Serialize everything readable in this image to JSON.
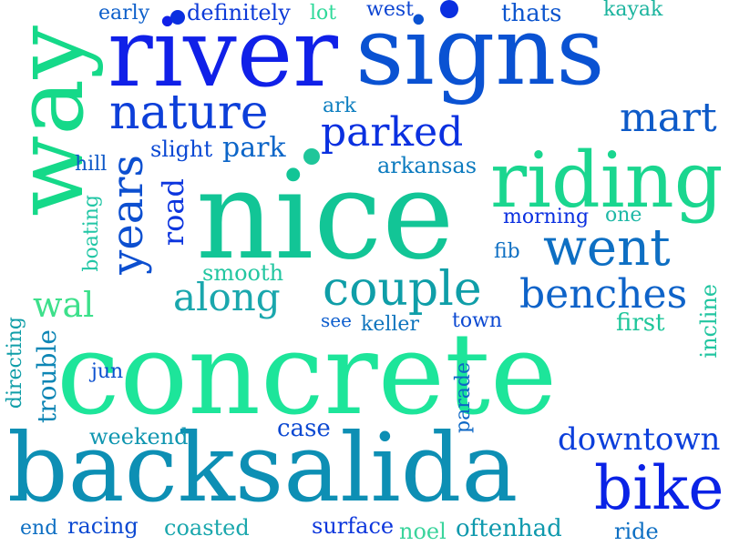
{
  "words": [
    {
      "text": "concrete",
      "color": "#1de59a",
      "vertical": false
    },
    {
      "text": "backsalida",
      "color": "#0d8fb4",
      "vertical": false
    },
    {
      "text": "nice",
      "color": "#12c596",
      "vertical": false
    },
    {
      "text": "river",
      "color": "#1020e8",
      "vertical": false
    },
    {
      "text": "signs",
      "color": "#0a52d2",
      "vertical": false
    },
    {
      "text": "way",
      "color": "#15d989",
      "vertical": true
    },
    {
      "text": "riding",
      "color": "#1ad68f",
      "vertical": false
    },
    {
      "text": "bike",
      "color": "#0a22e6",
      "vertical": false
    },
    {
      "text": "nature",
      "color": "#0d3fd9",
      "vertical": false
    },
    {
      "text": "went",
      "color": "#0e6fc3",
      "vertical": false
    },
    {
      "text": "couple",
      "color": "#0f9ea8",
      "vertical": false
    },
    {
      "text": "benches",
      "color": "#0e63c9",
      "vertical": false
    },
    {
      "text": "years",
      "color": "#0c4fd0",
      "vertical": true
    },
    {
      "text": "along",
      "color": "#1aa7ad",
      "vertical": false
    },
    {
      "text": "parked",
      "color": "#0a30e0",
      "vertical": false
    },
    {
      "text": "mart",
      "color": "#0d5ac8",
      "vertical": false
    },
    {
      "text": "downtown",
      "color": "#0c3fdb",
      "vertical": false
    },
    {
      "text": "road",
      "color": "#0c35de",
      "vertical": true
    },
    {
      "text": "wal",
      "color": "#3de08b",
      "vertical": false
    },
    {
      "text": "park",
      "color": "#0d66c8",
      "vertical": false
    },
    {
      "text": "slight",
      "color": "#0a48d4",
      "vertical": false
    },
    {
      "text": "trouble",
      "color": "#0e86b5",
      "vertical": true
    },
    {
      "text": "definitely",
      "color": "#0c3ad8",
      "vertical": false
    },
    {
      "text": "early",
      "color": "#0d5fca",
      "vertical": false
    },
    {
      "text": "lot",
      "color": "#2fd99a",
      "vertical": false
    },
    {
      "text": "west",
      "color": "#0d45d2",
      "vertical": false
    },
    {
      "text": "thats",
      "color": "#0c55ce",
      "vertical": false
    },
    {
      "text": "kayak",
      "color": "#1bb49e",
      "vertical": false
    },
    {
      "text": "ark",
      "color": "#0e7fc0",
      "vertical": false
    },
    {
      "text": "hill",
      "color": "#0d58c8",
      "vertical": false
    },
    {
      "text": "arkansas",
      "color": "#0c7bbf",
      "vertical": false
    },
    {
      "text": "morning",
      "color": "#0a2fe0",
      "vertical": false
    },
    {
      "text": "one",
      "color": "#1fb8a6",
      "vertical": false
    },
    {
      "text": "fib",
      "color": "#0e6fc3",
      "vertical": false
    },
    {
      "text": "smooth",
      "color": "#22c6a0",
      "vertical": false
    },
    {
      "text": "boating",
      "color": "#21c6a5",
      "vertical": true
    },
    {
      "text": "see",
      "color": "#0c5dcd",
      "vertical": false
    },
    {
      "text": "keller",
      "color": "#0e74bd",
      "vertical": false
    },
    {
      "text": "town",
      "color": "#0c49d2",
      "vertical": false
    },
    {
      "text": "first",
      "color": "#1fc69a",
      "vertical": false
    },
    {
      "text": "incline",
      "color": "#21c5a0",
      "vertical": true
    },
    {
      "text": "directing",
      "color": "#0f9ea8",
      "vertical": true
    },
    {
      "text": "jun",
      "color": "#0c50cf",
      "vertical": false
    },
    {
      "text": "parade",
      "color": "#0d67c5",
      "vertical": true
    },
    {
      "text": "weekend",
      "color": "#0f96b0",
      "vertical": false
    },
    {
      "text": "case",
      "color": "#0c49d2",
      "vertical": false
    },
    {
      "text": "end",
      "color": "#0e6fc3",
      "vertical": false
    },
    {
      "text": "racing",
      "color": "#0c49d2",
      "vertical": false
    },
    {
      "text": "coasted",
      "color": "#1aa7ad",
      "vertical": false
    },
    {
      "text": "surface",
      "color": "#0c36dc",
      "vertical": false
    },
    {
      "text": "noel",
      "color": "#3ad49c",
      "vertical": false
    },
    {
      "text": "oftenhad",
      "color": "#0f99ad",
      "vertical": false
    },
    {
      "text": "ride",
      "color": "#0e6fc3",
      "vertical": false
    }
  ],
  "dots": [
    {
      "color": "#0a2fe0"
    },
    {
      "color": "#0a2fe0"
    },
    {
      "color": "#1fc69a"
    }
  ]
}
